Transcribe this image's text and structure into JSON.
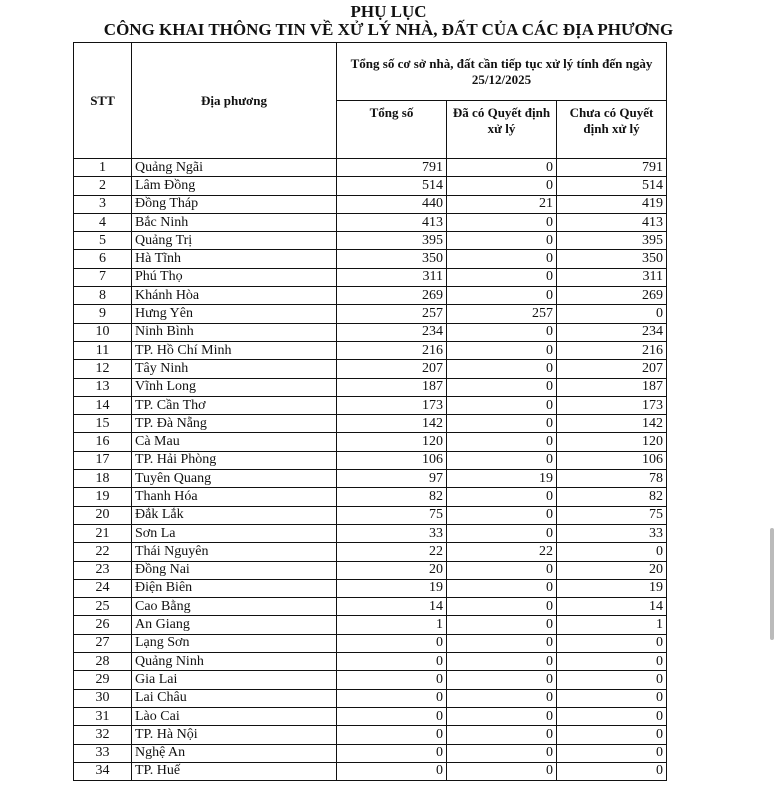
{
  "document": {
    "title": "PHỤ LỤC",
    "subtitle": "CÔNG KHAI THÔNG TIN VỀ XỬ LÝ NHÀ, ĐẤT CỦA CÁC ĐỊA PHƯƠNG",
    "headers": {
      "stt": "STT",
      "locality": "Địa phương",
      "group": "Tổng số cơ sở nhà, đất cần tiếp tục xử lý tính đến ngày 25/12/2025",
      "total": "Tổng số",
      "decided": "Đã có Quyết định xử lý",
      "undecided": "Chưa có Quyết định xử lý"
    },
    "rows": [
      [
        "1",
        "Quảng Ngãi",
        "791",
        "0",
        "791"
      ],
      [
        "2",
        "Lâm Đồng",
        "514",
        "0",
        "514"
      ],
      [
        "3",
        "Đồng Tháp",
        "440",
        "21",
        "419"
      ],
      [
        "4",
        "Bắc Ninh",
        "413",
        "0",
        "413"
      ],
      [
        "5",
        "Quảng Trị",
        "395",
        "0",
        "395"
      ],
      [
        "6",
        "Hà Tĩnh",
        "350",
        "0",
        "350"
      ],
      [
        "7",
        "Phú Thọ",
        "311",
        "0",
        "311"
      ],
      [
        "8",
        "Khánh Hòa",
        "269",
        "0",
        "269"
      ],
      [
        "9",
        "Hưng Yên",
        "257",
        "257",
        "0"
      ],
      [
        "10",
        "Ninh Bình",
        "234",
        "0",
        "234"
      ],
      [
        "11",
        "TP. Hồ Chí Minh",
        "216",
        "0",
        "216"
      ],
      [
        "12",
        "Tây Ninh",
        "207",
        "0",
        "207"
      ],
      [
        "13",
        "Vĩnh Long",
        "187",
        "0",
        "187"
      ],
      [
        "14",
        "TP. Cần Thơ",
        "173",
        "0",
        "173"
      ],
      [
        "15",
        "TP. Đà Nẵng",
        "142",
        "0",
        "142"
      ],
      [
        "16",
        "Cà Mau",
        "120",
        "0",
        "120"
      ],
      [
        "17",
        "TP. Hải Phòng",
        "106",
        "0",
        "106"
      ],
      [
        "18",
        "Tuyên Quang",
        "97",
        "19",
        "78"
      ],
      [
        "19",
        "Thanh Hóa",
        "82",
        "0",
        "82"
      ],
      [
        "20",
        "Đắk Lắk",
        "75",
        "0",
        "75"
      ],
      [
        "21",
        "Sơn La",
        "33",
        "0",
        "33"
      ],
      [
        "22",
        "Thái Nguyên",
        "22",
        "22",
        "0"
      ],
      [
        "23",
        "Đồng Nai",
        "20",
        "0",
        "20"
      ],
      [
        "24",
        "Điện Biên",
        "19",
        "0",
        "19"
      ],
      [
        "25",
        "Cao Bằng",
        "14",
        "0",
        "14"
      ],
      [
        "26",
        "An Giang",
        "1",
        "0",
        "1"
      ],
      [
        "27",
        "Lạng Sơn",
        "0",
        "0",
        "0"
      ],
      [
        "28",
        "Quảng Ninh",
        "0",
        "0",
        "0"
      ],
      [
        "29",
        "Gia Lai",
        "0",
        "0",
        "0"
      ],
      [
        "30",
        "Lai Châu",
        "0",
        "0",
        "0"
      ],
      [
        "31",
        "Lào Cai",
        "0",
        "0",
        "0"
      ],
      [
        "32",
        "TP. Hà Nội",
        "0",
        "0",
        "0"
      ],
      [
        "33",
        "Nghệ An",
        "0",
        "0",
        "0"
      ],
      [
        "34",
        "TP. Huế",
        "0",
        "0",
        "0"
      ]
    ]
  }
}
